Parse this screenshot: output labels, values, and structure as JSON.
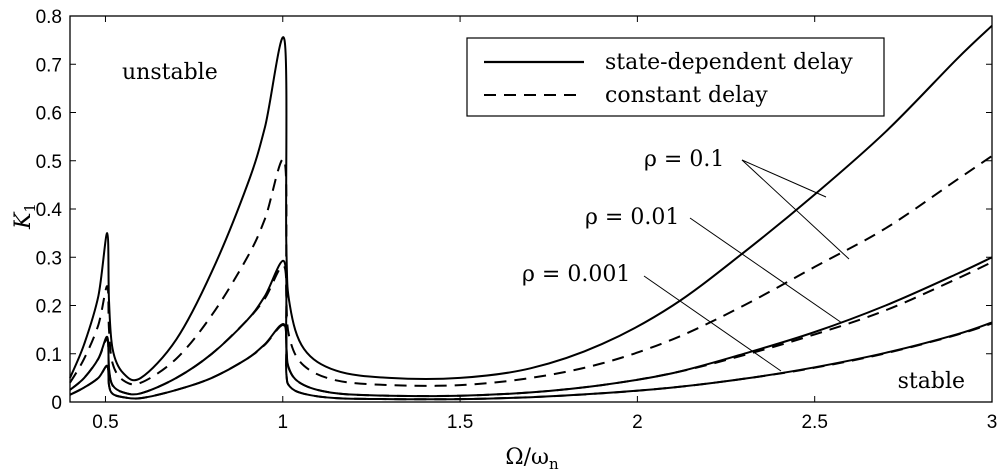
{
  "chart_data": {
    "type": "line",
    "xlabel": "Ω/ω",
    "xlabel_sub": "n",
    "ylabel": "K",
    "ylabel_sub": "1",
    "xlim": [
      0.4,
      3.0
    ],
    "ylim": [
      0,
      0.8
    ],
    "x_ticks": [
      "0.5",
      "1",
      "1.5",
      "2",
      "2.5",
      "3"
    ],
    "y_ticks": [
      "0",
      "0.1",
      "0.2",
      "0.3",
      "0.4",
      "0.5",
      "0.6",
      "0.7",
      "0.8"
    ],
    "grid": false,
    "legend": {
      "position": "top-right",
      "entries": [
        {
          "label": "state-dependent delay",
          "style": "solid"
        },
        {
          "label": "constant delay",
          "style": "dashed"
        }
      ]
    },
    "region_labels": {
      "upper_left": "unstable",
      "lower_right": "stable"
    },
    "annotations": [
      {
        "label": "ρ = 0.1",
        "rho": 0.1
      },
      {
        "label": "ρ = 0.01",
        "rho": 0.01
      },
      {
        "label": "ρ = 0.001",
        "rho": 0.001
      }
    ],
    "series": [
      {
        "rho": 0.1,
        "style": "solid",
        "x": [
          0.4,
          0.44,
          0.48,
          0.505,
          0.51,
          0.52,
          0.55,
          0.6,
          0.7,
          0.8,
          0.9,
          0.95,
          1.005,
          1.01,
          1.02,
          1.06,
          1.15,
          1.3,
          1.5,
          1.7,
          1.9,
          2.1,
          2.3,
          2.5,
          2.7,
          2.9,
          3.0
        ],
        "y": [
          0.05,
          0.12,
          0.22,
          0.35,
          0.21,
          0.11,
          0.06,
          0.05,
          0.13,
          0.27,
          0.45,
          0.57,
          0.75,
          0.33,
          0.2,
          0.11,
          0.065,
          0.05,
          0.05,
          0.07,
          0.12,
          0.2,
          0.31,
          0.43,
          0.56,
          0.71,
          0.78
        ]
      },
      {
        "rho": 0.1,
        "style": "dashed",
        "x": [
          0.4,
          0.44,
          0.48,
          0.505,
          0.51,
          0.52,
          0.55,
          0.6,
          0.7,
          0.8,
          0.9,
          0.95,
          1.005,
          1.01,
          1.02,
          1.06,
          1.15,
          1.3,
          1.5,
          1.7,
          1.9,
          2.1,
          2.3,
          2.5,
          2.7,
          2.9,
          3.0
        ],
        "y": [
          0.04,
          0.09,
          0.16,
          0.24,
          0.15,
          0.08,
          0.045,
          0.04,
          0.09,
          0.18,
          0.3,
          0.38,
          0.5,
          0.22,
          0.13,
          0.075,
          0.045,
          0.035,
          0.035,
          0.05,
          0.08,
          0.13,
          0.2,
          0.28,
          0.36,
          0.46,
          0.51
        ]
      },
      {
        "rho": 0.01,
        "style": "solid",
        "x": [
          0.4,
          0.44,
          0.48,
          0.505,
          0.51,
          0.52,
          0.55,
          0.6,
          0.7,
          0.8,
          0.9,
          0.95,
          1.005,
          1.01,
          1.02,
          1.06,
          1.15,
          1.3,
          1.5,
          1.7,
          1.9,
          2.1,
          2.3,
          2.5,
          2.7,
          2.9,
          3.0
        ],
        "y": [
          0.025,
          0.05,
          0.09,
          0.135,
          0.07,
          0.035,
          0.02,
          0.018,
          0.05,
          0.1,
          0.17,
          0.22,
          0.29,
          0.12,
          0.065,
          0.035,
          0.018,
          0.013,
          0.013,
          0.02,
          0.035,
          0.06,
          0.1,
          0.145,
          0.2,
          0.265,
          0.3
        ]
      },
      {
        "rho": 0.01,
        "style": "dashed",
        "x": [
          0.4,
          0.44,
          0.48,
          0.505,
          0.51,
          0.52,
          0.55,
          0.6,
          0.7,
          0.8,
          0.9,
          0.95,
          1.005,
          1.01,
          1.02,
          1.06,
          1.15,
          1.3,
          1.5,
          1.7,
          1.9,
          2.1,
          2.3,
          2.5,
          2.7,
          2.9,
          3.0
        ],
        "y": [
          0.025,
          0.05,
          0.09,
          0.13,
          0.068,
          0.034,
          0.02,
          0.018,
          0.05,
          0.1,
          0.17,
          0.215,
          0.28,
          0.118,
          0.064,
          0.035,
          0.018,
          0.013,
          0.013,
          0.02,
          0.035,
          0.06,
          0.097,
          0.14,
          0.19,
          0.255,
          0.29
        ]
      },
      {
        "rho": 0.001,
        "style": "solid",
        "x": [
          0.4,
          0.44,
          0.48,
          0.505,
          0.51,
          0.52,
          0.55,
          0.6,
          0.7,
          0.8,
          0.9,
          0.95,
          1.005,
          1.01,
          1.02,
          1.06,
          1.15,
          1.3,
          1.5,
          1.7,
          1.9,
          2.1,
          2.3,
          2.5,
          2.7,
          2.9,
          3.0
        ],
        "y": [
          0.015,
          0.03,
          0.05,
          0.075,
          0.035,
          0.017,
          0.01,
          0.008,
          0.025,
          0.05,
          0.09,
          0.12,
          0.16,
          0.06,
          0.032,
          0.017,
          0.008,
          0.006,
          0.006,
          0.01,
          0.018,
          0.03,
          0.048,
          0.072,
          0.102,
          0.14,
          0.165
        ]
      },
      {
        "rho": 0.001,
        "style": "dashed",
        "x": [
          0.4,
          0.44,
          0.48,
          0.505,
          0.51,
          0.52,
          0.55,
          0.6,
          0.7,
          0.8,
          0.9,
          0.95,
          1.005,
          1.01,
          1.02,
          1.06,
          1.15,
          1.3,
          1.5,
          1.7,
          1.9,
          2.1,
          2.3,
          2.5,
          2.7,
          2.9,
          3.0
        ],
        "y": [
          0.015,
          0.03,
          0.05,
          0.074,
          0.035,
          0.017,
          0.01,
          0.008,
          0.025,
          0.05,
          0.09,
          0.119,
          0.158,
          0.06,
          0.032,
          0.017,
          0.008,
          0.006,
          0.006,
          0.01,
          0.018,
          0.03,
          0.048,
          0.071,
          0.101,
          0.139,
          0.163
        ]
      }
    ]
  }
}
